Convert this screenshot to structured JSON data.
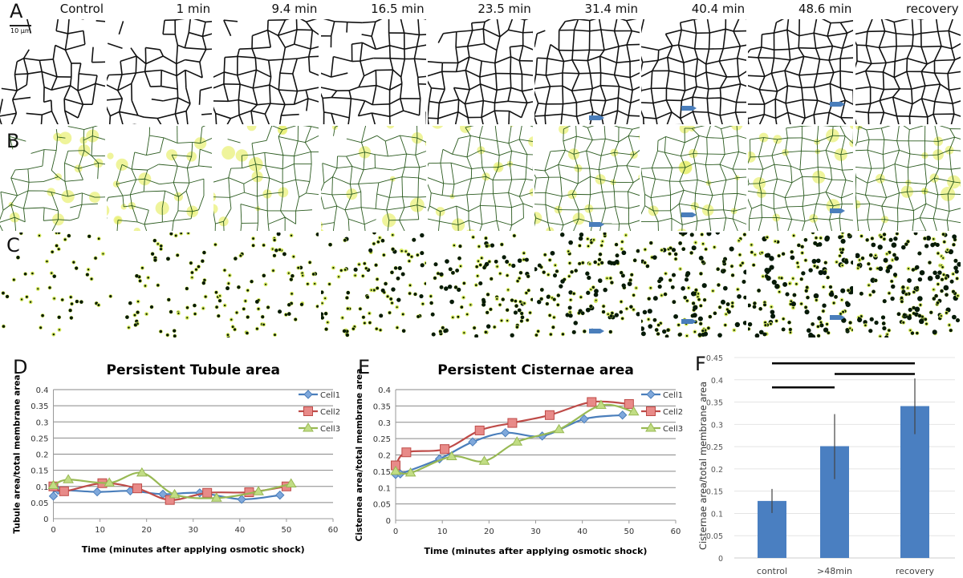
{
  "panel_letters": [
    "A",
    "B",
    "C",
    "D",
    "E",
    "F"
  ],
  "timepoints": [
    "Control",
    "1 min",
    "9.4 min",
    "16.5 min",
    "23.5 min",
    "31.4 min",
    "40.4 min",
    "48.6 min",
    "recovery"
  ],
  "scale_bar": "10 µm",
  "colors": {
    "cell1": "#4a7ebb",
    "cell2": "#be4b48",
    "cell3": "#98b954",
    "bar": "#4a7fc1",
    "arrow": "#4a7ebb"
  },
  "chart_data": [
    {
      "type": "line",
      "title": "Persistent Tubule area",
      "xlabel": "Time (minutes after applying osmotic shock)",
      "ylabel": "Tubule area/total membrane area",
      "xlim": [
        0,
        60
      ],
      "ylim": [
        0,
        0.4
      ],
      "xticks": [
        "0",
        "10",
        "20",
        "30",
        "40",
        "50",
        "60"
      ],
      "yticks": [
        "0",
        "0.05",
        "0.1",
        "0.15",
        "0.2",
        "0.25",
        "0.3",
        "0.35",
        "0.4"
      ],
      "legend": "right",
      "series": [
        {
          "name": "Cell1",
          "x": [
            0,
            1,
            9.4,
            16.5,
            23.5,
            31.4,
            40.4,
            48.6
          ],
          "y": [
            0.07,
            0.088,
            0.083,
            0.086,
            0.076,
            0.08,
            0.06,
            0.073
          ]
        },
        {
          "name": "Cell2",
          "x": [
            0,
            2.3,
            10.5,
            18,
            25,
            33,
            42,
            50
          ],
          "y": [
            0.1,
            0.085,
            0.11,
            0.094,
            0.058,
            0.08,
            0.082,
            0.1
          ]
        },
        {
          "name": "Cell3",
          "x": [
            0,
            3.2,
            12,
            19,
            26,
            35,
            44,
            51
          ],
          "y": [
            0.103,
            0.121,
            0.111,
            0.142,
            0.075,
            0.064,
            0.084,
            0.108
          ]
        }
      ]
    },
    {
      "type": "line",
      "title": "Persistent Cisternae area",
      "xlabel": "Time (minutes after applying osmotic shock)",
      "ylabel": "Cisternea area/total membrane area",
      "xlim": [
        0,
        60
      ],
      "ylim": [
        0,
        0.4
      ],
      "xticks": [
        "0",
        "10",
        "20",
        "30",
        "40",
        "50",
        "60"
      ],
      "yticks": [
        "0",
        "0.05",
        "0.1",
        "0.15",
        "0.2",
        "0.25",
        "0.3",
        "0.35",
        "0.4"
      ],
      "legend": "right",
      "series": [
        {
          "name": "Cell1",
          "x": [
            0,
            1,
            9.4,
            16.5,
            23.5,
            31.4,
            40.4,
            48.6
          ],
          "y": [
            0.14,
            0.142,
            0.188,
            0.24,
            0.268,
            0.258,
            0.31,
            0.322
          ]
        },
        {
          "name": "Cell2",
          "x": [
            0,
            2.3,
            10.5,
            18,
            25,
            33,
            42,
            50
          ],
          "y": [
            0.168,
            0.208,
            0.218,
            0.275,
            0.298,
            0.322,
            0.362,
            0.356
          ]
        },
        {
          "name": "Cell3",
          "x": [
            0,
            3.2,
            12,
            19,
            26,
            35,
            44,
            51
          ],
          "y": [
            0.15,
            0.145,
            0.195,
            0.181,
            0.24,
            0.278,
            0.352,
            0.332
          ]
        }
      ]
    },
    {
      "type": "bar",
      "title": "",
      "xlabel": "",
      "ylabel": "Cisternae area/total membrane area",
      "ylim": [
        0,
        0.45
      ],
      "yticks": [
        "0",
        "0.05",
        "0.1",
        "0.15",
        "0.2",
        "0.25",
        "0.3",
        "0.35",
        "0.4",
        "0.45"
      ],
      "categories": [
        "control",
        ">48min",
        "recovery"
      ],
      "values": [
        0.128,
        0.251,
        0.341
      ],
      "error_low": [
        0.101,
        0.177,
        0.278
      ],
      "error_high": [
        0.155,
        0.323,
        0.403
      ],
      "significance": [
        [
          "control",
          "recovery"
        ],
        [
          ">48min",
          "recovery"
        ],
        [
          "control",
          ">48min"
        ]
      ]
    }
  ]
}
